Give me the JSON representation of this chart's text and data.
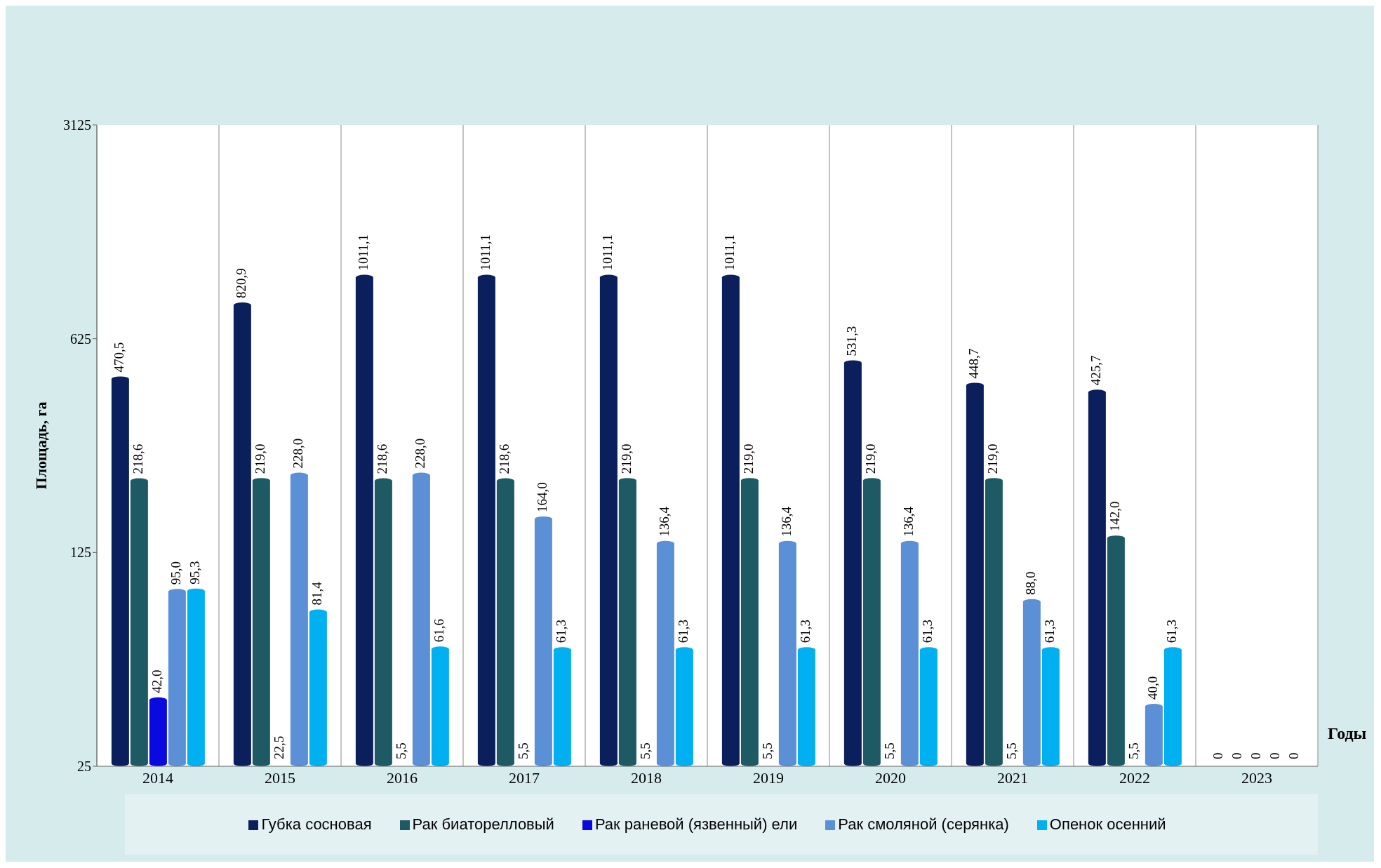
{
  "chart_data": {
    "type": "bar",
    "xlabel": "Годы",
    "ylabel": "Площадь, га",
    "categories": [
      "2014",
      "2015",
      "2016",
      "2017",
      "2018",
      "2019",
      "2020",
      "2021",
      "2022",
      "2023"
    ],
    "log": true,
    "ylim": [
      25,
      3125
    ],
    "yticks": [
      25,
      125,
      625,
      3125
    ],
    "grid": "x",
    "legend": "bottom",
    "series": [
      {
        "name": "Губка сосновая",
        "color": "#0b1f5c",
        "values": [
          470.5,
          820.9,
          1011.1,
          1011.1,
          1011.1,
          1011.1,
          531.3,
          448.7,
          425.7,
          null
        ],
        "value_labels": [
          "470,5",
          "820,9",
          "1011,1",
          "1011,1",
          "1011,1",
          "1011,1",
          "531,3",
          "448,7",
          "425,7",
          "0"
        ]
      },
      {
        "name": "Рак биаторелловый",
        "color": "#1d5a63",
        "values": [
          218.6,
          219.0,
          218.6,
          218.6,
          219.0,
          219.0,
          219.0,
          219.0,
          142.0,
          null
        ],
        "value_labels": [
          "218,6",
          "219,0",
          "218,6",
          "218,6",
          "219,0",
          "219,0",
          "219,0",
          "219,0",
          "142,0",
          "0"
        ]
      },
      {
        "name": "Рак раневой (язвенный) ели",
        "color": "#0a0ae0",
        "values": [
          42.0,
          null,
          null,
          null,
          null,
          null,
          null,
          null,
          null,
          null
        ],
        "value_labels": [
          "42,0",
          "22,5",
          "5,5",
          "5,5",
          "5,5",
          "5,5",
          "5,5",
          "5,5",
          "5,5",
          "0"
        ]
      },
      {
        "name": "Рак смоляной (серянка)",
        "color": "#5b8fd6",
        "values": [
          95.0,
          228.0,
          228.0,
          164.0,
          136.4,
          136.4,
          136.4,
          88.0,
          40.0,
          null
        ],
        "value_labels": [
          "95,0",
          "228,0",
          "228,0",
          "164,0",
          "136,4",
          "136,4",
          "136,4",
          "88,0",
          "40,0",
          "0"
        ]
      },
      {
        "name": "Опенок осенний",
        "color": "#00b0f0",
        "values": [
          95.3,
          81.4,
          61.6,
          61.3,
          61.3,
          61.3,
          61.3,
          61.3,
          61.3,
          null
        ],
        "value_labels": [
          "95,3",
          "81,4",
          "61,6",
          "61,3",
          "61,3",
          "61,3",
          "61,3",
          "61,3",
          "61,3",
          "0"
        ]
      }
    ]
  }
}
